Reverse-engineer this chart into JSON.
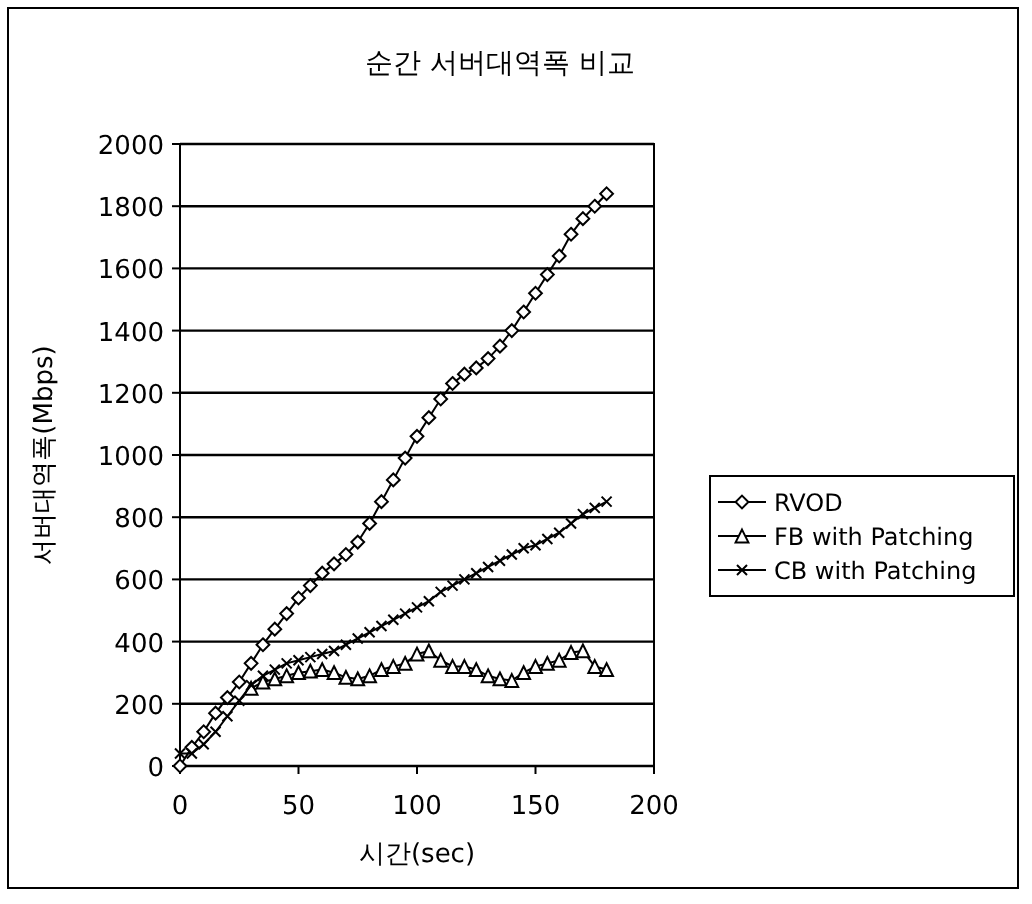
{
  "chart_data": {
    "type": "line",
    "title": "순간 서버대역폭 비교",
    "xlabel": "시간(sec)",
    "ylabel": "서버대역폭(Mbps)",
    "xlim": [
      0,
      200
    ],
    "xticks": [
      0,
      50,
      100,
      150,
      200
    ],
    "ylim": [
      0,
      2000
    ],
    "yticks": [
      0,
      200,
      400,
      600,
      800,
      1000,
      1200,
      1400,
      1600,
      1800,
      2000
    ],
    "grid": "y",
    "legend": "right",
    "line_style": "solid",
    "x": [
      0,
      5,
      10,
      15,
      20,
      25,
      30,
      35,
      40,
      45,
      50,
      55,
      60,
      65,
      70,
      75,
      80,
      85,
      90,
      95,
      100,
      105,
      110,
      115,
      120,
      125,
      130,
      135,
      140,
      145,
      150,
      155,
      160,
      165,
      170,
      175,
      180
    ],
    "series": [
      {
        "name": "RVOD",
        "color": "#000000",
        "marker": "diamond",
        "values": [
          0,
          60,
          110,
          170,
          220,
          270,
          330,
          390,
          440,
          490,
          540,
          580,
          620,
          650,
          680,
          720,
          780,
          850,
          920,
          990,
          1060,
          1120,
          1180,
          1230,
          1260,
          1280,
          1310,
          1350,
          1400,
          1460,
          1520,
          1580,
          1640,
          1710,
          1760,
          1800,
          1840
        ]
      },
      {
        "name": "FB with Patching",
        "color": "#000000",
        "marker": "triangle",
        "values": [
          null,
          null,
          null,
          null,
          null,
          null,
          250,
          270,
          280,
          290,
          300,
          305,
          310,
          300,
          285,
          280,
          290,
          310,
          320,
          330,
          360,
          370,
          340,
          320,
          320,
          310,
          290,
          280,
          275,
          300,
          320,
          330,
          340,
          365,
          370,
          320,
          310
        ]
      },
      {
        "name": "CB with Patching",
        "color": "#000000",
        "marker": "cross",
        "values": [
          40,
          40,
          70,
          110,
          160,
          210,
          260,
          290,
          310,
          330,
          340,
          350,
          360,
          370,
          390,
          410,
          430,
          450,
          470,
          490,
          510,
          530,
          560,
          580,
          600,
          620,
          640,
          660,
          680,
          700,
          710,
          730,
          750,
          780,
          810,
          830,
          850
        ]
      }
    ]
  }
}
